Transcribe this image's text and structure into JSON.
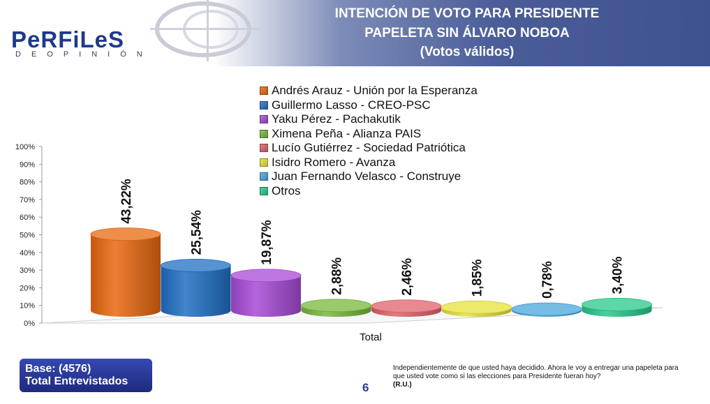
{
  "header": {
    "logo_text": "PeRFiLeS",
    "logo_sub": "DEOPINIÓN",
    "title_lines": [
      "INTENCIÓN DE VOTO PARA PRESIDENTE",
      "PAPELETA SIN ÁLVARO NOBOA",
      "(Votos válidos)"
    ]
  },
  "chart_data": {
    "type": "bar",
    "categories": [
      "Total"
    ],
    "series": [
      {
        "name": "Andrés Arauz - Unión por la Esperanza",
        "values": [
          43.22
        ],
        "label": "43,22%",
        "color": "#e8680f"
      },
      {
        "name": "Guillermo Lasso - CREO-PSC",
        "values": [
          25.54
        ],
        "label": "25,54%",
        "color": "#1f6fc4"
      },
      {
        "name": "Yaku Pérez - Pachakutik",
        "values": [
          19.87
        ],
        "label": "19,87%",
        "color": "#a84ad6"
      },
      {
        "name": "Ximena Peña - Alianza PAIS",
        "values": [
          2.88
        ],
        "label": "2,88%",
        "color": "#78b83a"
      },
      {
        "name": "Lucío Gutiérrez - Sociedad Patriótica",
        "values": [
          2.46
        ],
        "label": "2,46%",
        "color": "#e0626a"
      },
      {
        "name": "Isidro Romero - Avanza",
        "values": [
          1.85
        ],
        "label": "1,85%",
        "color": "#e6e23a"
      },
      {
        "name": "Juan Fernando Velasco - Construye",
        "values": [
          0.78
        ],
        "label": "0,78%",
        "color": "#4aa6dc"
      },
      {
        "name": "Otros",
        "values": [
          3.4
        ],
        "label": "3,40%",
        "color": "#27c98a"
      }
    ],
    "yticks": [
      "0%",
      "10%",
      "20%",
      "30%",
      "40%",
      "50%",
      "60%",
      "70%",
      "80%",
      "90%",
      "100%"
    ],
    "ylim": [
      0,
      100
    ],
    "xlabel": "Total",
    "legend_position": "top"
  },
  "footer": {
    "base_line1": "Base: (4576)",
    "base_line2": "Total Entrevistados",
    "question": "Independientemente de que usted haya decidido. Ahora le voy a entregar una papeleta para que usted vote como si las elecciones para Presidente fueran hoy?",
    "ru": "(R.U.)",
    "page_number": "6"
  }
}
